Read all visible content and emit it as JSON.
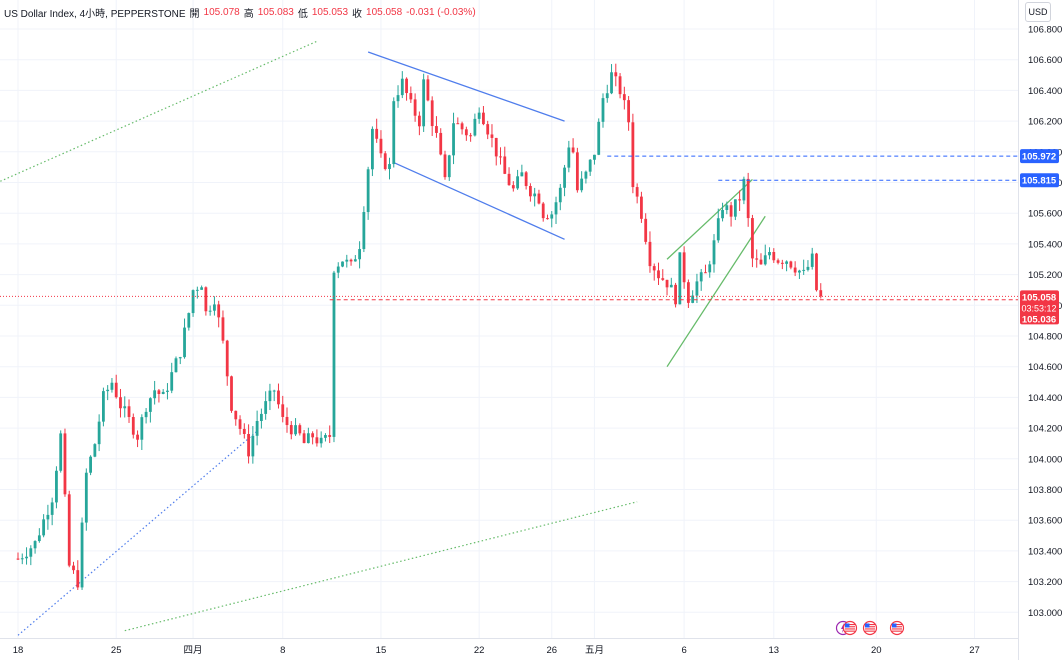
{
  "legend": {
    "symbol": "US Dollar Index, 4小時, PEPPERSTONE",
    "open_label": "開",
    "open": "105.078",
    "high_label": "高",
    "high": "105.083",
    "low_label": "低",
    "low": "105.053",
    "close_label": "收",
    "close": "105.058",
    "change": "-0.031 (-0.03%)"
  },
  "currency": "USD",
  "price_tags": {
    "level_high": "105.972",
    "level_mid": "105.815",
    "current": "105.058",
    "countdown": "03:53:12",
    "bid": "105.036"
  },
  "colors": {
    "up": "#26a69a",
    "down": "#f23645",
    "trend_blue": "#4f7dec",
    "trend_green": "#66bb6a",
    "level_tag": "#2962ff"
  },
  "chart_data": {
    "type": "candlestick",
    "title": "US Dollar Index, 4小時, PEPPERSTONE",
    "ylabel": "USD",
    "ylim": [
      102.88,
      106.92
    ],
    "y_ticks": [
      "106.800",
      "106.600",
      "106.400",
      "106.200",
      "106.000",
      "105.800",
      "105.600",
      "105.400",
      "105.200",
      "105.000",
      "104.800",
      "104.600",
      "104.400",
      "104.200",
      "104.000",
      "103.800",
      "103.600",
      "103.400",
      "103.200",
      "103.000"
    ],
    "x_ticks": [
      {
        "label": "18",
        "bar": 0
      },
      {
        "label": "25",
        "bar": 23
      },
      {
        "label": "四月",
        "bar": 41
      },
      {
        "label": "8",
        "bar": 62
      },
      {
        "label": "15",
        "bar": 85
      },
      {
        "label": "22",
        "bar": 108
      },
      {
        "label": "26",
        "bar": 125
      },
      {
        "label": "五月",
        "bar": 135
      },
      {
        "label": "6",
        "bar": 156
      },
      {
        "label": "13",
        "bar": 177
      },
      {
        "label": "20",
        "bar": 201
      },
      {
        "label": "27",
        "bar": 224
      }
    ],
    "last_price": 105.058,
    "bid_price": 105.036,
    "horizontal_levels": [
      105.972,
      105.815
    ],
    "series_path": [
      [
        0,
        103.35
      ],
      [
        4,
        103.45
      ],
      [
        8,
        103.75
      ],
      [
        10,
        104.15
      ],
      [
        12,
        103.3
      ],
      [
        14,
        103.2
      ],
      [
        16,
        103.9
      ],
      [
        18,
        104.1
      ],
      [
        20,
        104.4
      ],
      [
        22,
        104.5
      ],
      [
        24,
        104.35
      ],
      [
        26,
        104.25
      ],
      [
        28,
        104.15
      ],
      [
        30,
        104.35
      ],
      [
        32,
        104.45
      ],
      [
        34,
        104.4
      ],
      [
        36,
        104.55
      ],
      [
        38,
        104.7
      ],
      [
        40,
        104.95
      ],
      [
        41,
        105.1
      ],
      [
        43,
        105.15
      ],
      [
        44,
        104.95
      ],
      [
        46,
        105.05
      ],
      [
        48,
        104.75
      ],
      [
        50,
        104.35
      ],
      [
        52,
        104.2
      ],
      [
        54,
        104.05
      ],
      [
        56,
        104.25
      ],
      [
        58,
        104.35
      ],
      [
        60,
        104.45
      ],
      [
        62,
        104.25
      ],
      [
        64,
        104.2
      ],
      [
        66,
        104.15
      ],
      [
        67,
        104.1
      ],
      [
        69,
        104.15
      ],
      [
        71,
        104.1
      ],
      [
        73,
        104.15
      ],
      [
        74,
        105.25
      ],
      [
        76,
        105.3
      ],
      [
        78,
        105.25
      ],
      [
        80,
        105.4
      ],
      [
        82,
        105.9
      ],
      [
        83,
        106.15
      ],
      [
        85,
        105.95
      ],
      [
        87,
        105.9
      ],
      [
        88,
        106.35
      ],
      [
        90,
        106.45
      ],
      [
        92,
        106.3
      ],
      [
        94,
        106.2
      ],
      [
        95,
        106.45
      ],
      [
        97,
        106.2
      ],
      [
        98,
        106.1
      ],
      [
        99,
        105.95
      ],
      [
        100,
        105.8
      ],
      [
        102,
        106.2
      ],
      [
        104,
        106.15
      ],
      [
        106,
        106.1
      ],
      [
        108,
        106.3
      ],
      [
        110,
        106.15
      ],
      [
        112,
        106.0
      ],
      [
        114,
        105.85
      ],
      [
        116,
        105.75
      ],
      [
        118,
        105.85
      ],
      [
        120,
        105.75
      ],
      [
        122,
        105.7
      ],
      [
        123,
        105.6
      ],
      [
        125,
        105.6
      ],
      [
        127,
        105.75
      ],
      [
        129,
        106.05
      ],
      [
        130,
        106.0
      ],
      [
        131,
        105.75
      ],
      [
        133,
        105.85
      ],
      [
        135,
        106.0
      ],
      [
        137,
        106.35
      ],
      [
        139,
        106.5
      ],
      [
        141,
        106.4
      ],
      [
        143,
        106.2
      ],
      [
        144,
        105.8
      ],
      [
        146,
        105.6
      ],
      [
        148,
        105.3
      ],
      [
        150,
        105.2
      ],
      [
        152,
        105.15
      ],
      [
        154,
        105.05
      ],
      [
        155,
        105.3
      ],
      [
        157,
        105.05
      ],
      [
        159,
        105.15
      ],
      [
        161,
        105.2
      ],
      [
        163,
        105.4
      ],
      [
        165,
        105.65
      ],
      [
        167,
        105.6
      ],
      [
        169,
        105.7
      ],
      [
        170,
        105.8
      ],
      [
        172,
        105.3
      ],
      [
        174,
        105.25
      ],
      [
        176,
        105.35
      ],
      [
        178,
        105.3
      ],
      [
        180,
        105.3
      ],
      [
        182,
        105.25
      ],
      [
        184,
        105.2
      ],
      [
        186,
        105.3
      ],
      [
        187,
        105.1
      ],
      [
        188,
        105.06
      ]
    ],
    "trendlines": [
      {
        "style": "dotted-green",
        "from": [
          -17,
          105.65
        ],
        "to": [
          70,
          106.72
        ]
      },
      {
        "style": "dotted-blue",
        "from": [
          0,
          102.85
        ],
        "to": [
          56,
          104.18
        ]
      },
      {
        "style": "dotted-green",
        "from": [
          25,
          102.88
        ],
        "to": [
          145,
          103.72
        ]
      },
      {
        "style": "solid-blue",
        "from": [
          82,
          106.65
        ],
        "to": [
          128,
          106.2
        ]
      },
      {
        "style": "solid-blue",
        "from": [
          88,
          105.93
        ],
        "to": [
          128,
          105.43
        ]
      },
      {
        "style": "solid-green",
        "from": [
          152,
          105.3
        ],
        "to": [
          172,
          105.82
        ]
      },
      {
        "style": "solid-green",
        "from": [
          152,
          104.6
        ],
        "to": [
          175,
          105.58
        ]
      }
    ]
  }
}
